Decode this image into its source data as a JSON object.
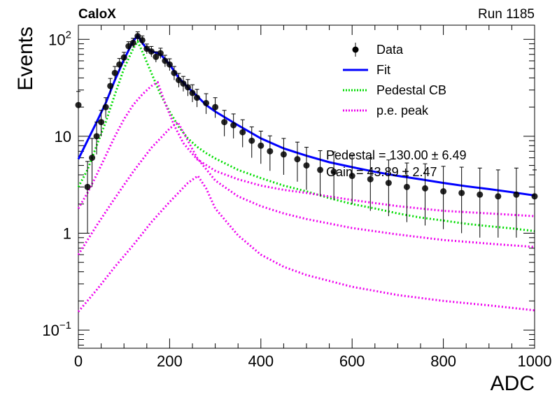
{
  "chart_data": {
    "type": "line",
    "experiment_label": "CaloX",
    "run_label": "Run 1185",
    "xlabel": "ADC",
    "ylabel": "Events",
    "xlim": [
      0,
      1000
    ],
    "ylim": [
      0.065,
      140
    ],
    "yscale": "log",
    "x_ticks": [
      {
        "v": 0,
        "label": "0"
      },
      {
        "v": 200,
        "label": "200"
      },
      {
        "v": 400,
        "label": "400"
      },
      {
        "v": 600,
        "label": "600"
      },
      {
        "v": 800,
        "label": "800"
      },
      {
        "v": 1000,
        "label": "1000"
      }
    ],
    "y_ticks": [
      {
        "v": 0.1,
        "base": "10",
        "exp": "−1"
      },
      {
        "v": 1,
        "base": "1",
        "exp": ""
      },
      {
        "v": 10,
        "base": "10",
        "exp": ""
      },
      {
        "v": 100,
        "base": "10",
        "exp": "2"
      }
    ],
    "legend": {
      "placement": "top-right",
      "entries": [
        {
          "label": "Data",
          "style": "marker"
        },
        {
          "label": "Fit",
          "style": "solid",
          "color": "#0000ff"
        },
        {
          "label": "Pedestal CB",
          "style": "dotted",
          "color": "#00dd00"
        },
        {
          "label": "p.e. peak",
          "style": "dotted",
          "color": "#ee00ee"
        }
      ]
    },
    "fit_params": [
      "Pedestal = 130.00 ± 6.49",
      "Gain = 43.89 ± 2.47"
    ],
    "series": [
      {
        "name": "Data",
        "color": "#000000",
        "x": [
          0,
          20,
          30,
          40,
          50,
          60,
          70,
          80,
          90,
          100,
          110,
          120,
          130,
          140,
          150,
          160,
          170,
          180,
          190,
          200,
          210,
          220,
          230,
          240,
          250,
          260,
          280,
          300,
          320,
          340,
          360,
          380,
          400,
          420,
          450,
          480,
          500,
          530,
          560,
          600,
          640,
          680,
          720,
          760,
          800,
          840,
          880,
          920,
          960,
          1000
        ],
        "y": [
          21,
          3,
          6,
          10,
          14,
          20,
          33,
          45,
          55,
          65,
          85,
          92,
          108,
          98,
          80,
          75,
          66,
          72,
          60,
          55,
          45,
          38,
          35,
          32,
          28,
          25,
          22,
          20,
          14,
          13,
          11,
          9,
          8,
          7,
          6.5,
          5.8,
          5,
          4.5,
          4.3,
          3.9,
          3.6,
          3.3,
          3.0,
          2.9,
          2.7,
          2.6,
          2.5,
          2.4,
          2.5,
          2.4
        ],
        "yerr_low": [
          7,
          2,
          3,
          3.5,
          4,
          4.5,
          6,
          7,
          8,
          8,
          9,
          10,
          11,
          10,
          9,
          9,
          8,
          8.5,
          8,
          7.5,
          7,
          6,
          6,
          6,
          5.5,
          5,
          5,
          4.5,
          4,
          3.5,
          3.3,
          3,
          2.8,
          2.6,
          2.5,
          2.4,
          2.2,
          2.1,
          2.1,
          1.9,
          1.9,
          1.8,
          1.7,
          1.7,
          1.6,
          1.6,
          1.6,
          1.5,
          1.6,
          1.5
        ],
        "yerr_high": [
          8,
          2.5,
          3.5,
          4,
          4.5,
          5,
          6.5,
          7.5,
          8.5,
          8.5,
          9.5,
          10.5,
          11.5,
          10.5,
          9.5,
          9.5,
          8.5,
          9,
          8.5,
          8,
          7.5,
          6.5,
          6.5,
          6.5,
          6,
          5.5,
          5.5,
          5,
          4.5,
          4,
          3.8,
          3.5,
          3.3,
          3.1,
          3.0,
          2.9,
          2.7,
          2.6,
          2.6,
          2.5,
          2.4,
          2.4,
          2.3,
          2.3,
          2.2,
          2.2,
          2.2,
          2.1,
          2.2,
          2.1
        ]
      },
      {
        "name": "Fit",
        "color": "#0000ff",
        "x": [
          0,
          20,
          40,
          60,
          80,
          100,
          120,
          130,
          140,
          150,
          160,
          170,
          180,
          200,
          220,
          240,
          260,
          280,
          300,
          350,
          400,
          450,
          500,
          550,
          600,
          650,
          700,
          750,
          800,
          850,
          900,
          950,
          1000
        ],
        "y": [
          5.8,
          9,
          14,
          22,
          38,
          62,
          95,
          110,
          92,
          80,
          75,
          73,
          70,
          55,
          40,
          32,
          26,
          21,
          18,
          13,
          9.5,
          7.5,
          6.3,
          5.4,
          4.8,
          4.3,
          3.9,
          3.6,
          3.3,
          3.05,
          2.85,
          2.65,
          2.45
        ]
      },
      {
        "name": "Pedestal CB",
        "color": "#00dd00",
        "x": [
          0,
          20,
          40,
          60,
          80,
          100,
          120,
          130,
          140,
          160,
          180,
          200,
          220,
          240,
          260,
          280,
          300,
          350,
          400,
          450,
          500,
          550,
          600,
          650,
          700,
          750,
          800,
          850,
          900,
          950,
          1000
        ],
        "y": [
          3.0,
          4.5,
          8,
          14,
          27,
          50,
          80,
          95,
          75,
          45,
          27,
          18,
          12.5,
          9.5,
          7.8,
          6.7,
          5.9,
          4.5,
          3.7,
          3.1,
          2.7,
          2.3,
          2.0,
          1.8,
          1.6,
          1.45,
          1.35,
          1.25,
          1.18,
          1.12,
          1.05
        ]
      },
      {
        "name": "p.e. peak 1",
        "color": "#ee00ee",
        "x": [
          0,
          20,
          40,
          60,
          80,
          100,
          120,
          140,
          160,
          174,
          190,
          210,
          230,
          260,
          300,
          350,
          400,
          450,
          500,
          600,
          700,
          800,
          900,
          1000
        ],
        "y": [
          1.8,
          2.6,
          4.0,
          6.3,
          10,
          15,
          21,
          27,
          33,
          36,
          22,
          13,
          8.5,
          5.8,
          4.4,
          3.6,
          3.1,
          2.8,
          2.6,
          2.2,
          1.9,
          1.7,
          1.6,
          1.5
        ]
      },
      {
        "name": "p.e. peak 2",
        "color": "#ee00ee",
        "x": [
          0,
          40,
          80,
          120,
          160,
          200,
          218,
          240,
          260,
          300,
          350,
          400,
          450,
          500,
          600,
          700,
          800,
          900,
          1000
        ],
        "y": [
          0.6,
          1.2,
          2.3,
          4.3,
          7.6,
          12,
          14,
          9,
          6,
          3.5,
          2.4,
          1.9,
          1.6,
          1.4,
          1.13,
          0.97,
          0.85,
          0.78,
          0.72
        ]
      },
      {
        "name": "p.e. peak 3",
        "color": "#ee00ee",
        "x": [
          0,
          40,
          80,
          120,
          160,
          200,
          240,
          262,
          280,
          300,
          350,
          400,
          450,
          500,
          600,
          700,
          800,
          900,
          1000
        ],
        "y": [
          0.155,
          0.26,
          0.45,
          0.75,
          1.3,
          2.1,
          3.3,
          3.9,
          2.9,
          1.8,
          0.95,
          0.6,
          0.45,
          0.37,
          0.28,
          0.23,
          0.2,
          0.18,
          0.16
        ]
      }
    ]
  }
}
